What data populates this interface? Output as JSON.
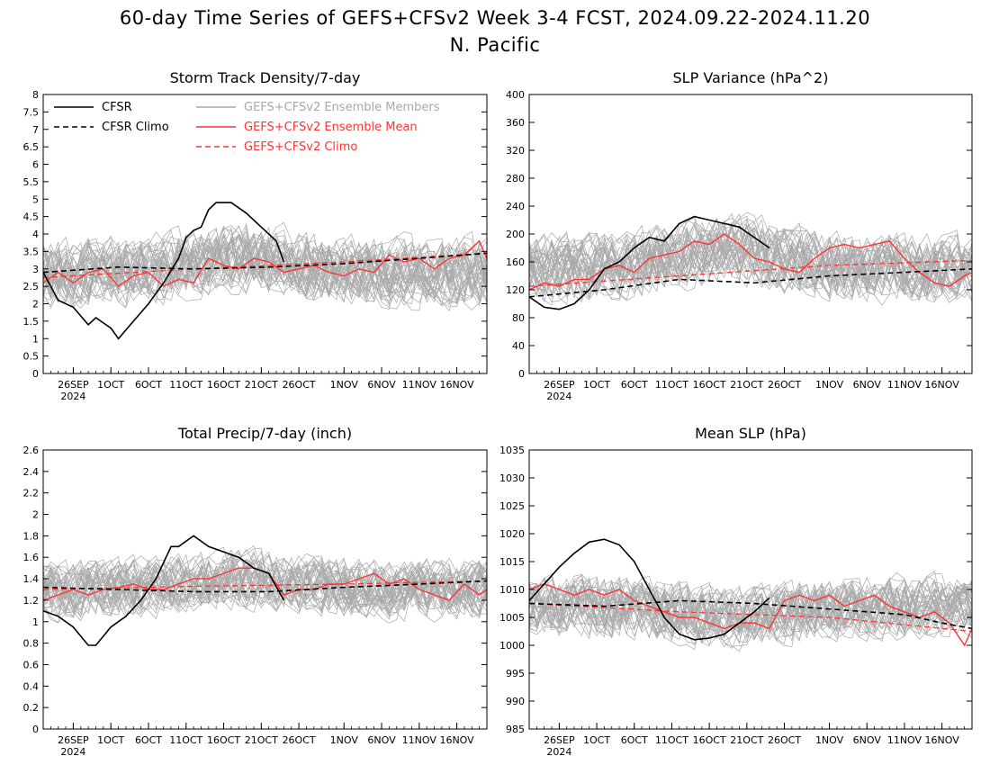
{
  "figure": {
    "title_line1": "60-day Time Series of GEFS+CFSv2 Week 3-4 FCST, 2024.09.22-2024.11.20",
    "title_line2": "N. Pacific"
  },
  "legend": [
    {
      "label": "CFSR",
      "color": "#000000",
      "dashed": false
    },
    {
      "label": "CFSR Climo",
      "color": "#000000",
      "dashed": true
    },
    {
      "label": "GEFS+CFSv2 Ensemble Members",
      "color": "#a9a9a9",
      "dashed": false
    },
    {
      "label": "GEFS+CFSv2 Ensemble Mean",
      "color": "#ff3333",
      "dashed": false
    },
    {
      "label": "GEFS+CFSv2 Climo",
      "color": "#ff3333",
      "dashed": true
    }
  ],
  "colors": {
    "cfsr": "#000000",
    "members": "#a9a9a9",
    "mean": "#ff3333"
  },
  "x_ticks": [
    {
      "label": "26SEP",
      "day": 4
    },
    {
      "label": "1OCT",
      "day": 9
    },
    {
      "label": "6OCT",
      "day": 14
    },
    {
      "label": "11OCT",
      "day": 19
    },
    {
      "label": "16OCT",
      "day": 24
    },
    {
      "label": "21OCT",
      "day": 29
    },
    {
      "label": "26OCT",
      "day": 34
    },
    {
      "label": "1NOV",
      "day": 40
    },
    {
      "label": "6NOV",
      "day": 45
    },
    {
      "label": "11NOV",
      "day": 50
    },
    {
      "label": "16NOV",
      "day": 55
    }
  ],
  "x_year": {
    "label": "2024",
    "day": 4
  },
  "chart_data": [
    {
      "type": "line",
      "title": "Storm Track Density/7-day",
      "xlim": [
        0,
        59
      ],
      "ylim": [
        0,
        8
      ],
      "yticks": [
        "0",
        "0.5",
        "1",
        "1.5",
        "2",
        "2.5",
        "3",
        "3.5",
        "4",
        "4.5",
        "5",
        "5.5",
        "6",
        "6.5",
        "7",
        "7.5",
        "8"
      ],
      "ytick_values": [
        0,
        0.5,
        1,
        1.5,
        2,
        2.5,
        3,
        3.5,
        4,
        4.5,
        5,
        5.5,
        6,
        6.5,
        7,
        7.5,
        8
      ],
      "show_legend": true,
      "member_base": 2.9,
      "member_spread": 0.9,
      "member_bump": 0.4,
      "series": [
        {
          "role": "obs",
          "x": [
            0,
            2,
            4,
            6,
            7,
            9,
            10,
            12,
            14,
            16,
            18,
            19,
            20,
            21,
            22,
            23,
            25,
            27,
            29,
            31,
            32
          ],
          "y": [
            2.9,
            2.1,
            1.9,
            1.4,
            1.6,
            1.3,
            1.0,
            1.5,
            2.0,
            2.6,
            3.3,
            3.9,
            4.1,
            4.2,
            4.7,
            4.9,
            4.9,
            4.6,
            4.2,
            3.8,
            3.2
          ]
        },
        {
          "role": "obs_climo",
          "x": [
            0,
            10,
            20,
            30,
            40,
            50,
            59
          ],
          "y": [
            2.9,
            3.05,
            3.0,
            3.05,
            3.15,
            3.3,
            3.45
          ]
        },
        {
          "role": "mean",
          "x": [
            0,
            2,
            4,
            6,
            8,
            10,
            12,
            14,
            16,
            18,
            20,
            22,
            24,
            26,
            28,
            30,
            32,
            34,
            36,
            38,
            40,
            42,
            44,
            46,
            48,
            50,
            52,
            54,
            56,
            58,
            59
          ],
          "y": [
            2.6,
            2.9,
            2.6,
            2.9,
            3.0,
            2.5,
            2.8,
            2.9,
            2.5,
            2.7,
            2.6,
            3.3,
            3.1,
            3.0,
            3.3,
            3.2,
            2.9,
            3.0,
            3.1,
            2.9,
            2.8,
            3.0,
            2.9,
            3.4,
            3.2,
            3.3,
            3.0,
            3.3,
            3.4,
            3.8,
            3.3
          ]
        },
        {
          "role": "model_climo",
          "x": [
            0,
            20,
            40,
            59
          ],
          "y": [
            2.75,
            3.0,
            3.2,
            3.45
          ]
        }
      ]
    },
    {
      "type": "line",
      "title": "SLP Variance (hPa^2)",
      "xlim": [
        0,
        59
      ],
      "ylim": [
        0,
        400
      ],
      "yticks": [
        "0",
        "40",
        "80",
        "120",
        "160",
        "200",
        "240",
        "280",
        "320",
        "360",
        "400"
      ],
      "ytick_values": [
        0,
        40,
        80,
        120,
        160,
        200,
        240,
        280,
        320,
        360,
        400
      ],
      "show_legend": false,
      "member_base": 150,
      "member_spread": 45,
      "member_bump": 30,
      "series": [
        {
          "role": "obs",
          "x": [
            0,
            2,
            4,
            6,
            8,
            10,
            12,
            14,
            16,
            18,
            20,
            22,
            24,
            26,
            28,
            30,
            32
          ],
          "y": [
            110,
            95,
            92,
            100,
            120,
            150,
            160,
            180,
            195,
            190,
            215,
            225,
            220,
            215,
            210,
            195,
            180
          ]
        },
        {
          "role": "obs_climo",
          "x": [
            0,
            10,
            20,
            30,
            40,
            50,
            59
          ],
          "y": [
            110,
            120,
            135,
            130,
            140,
            145,
            150
          ]
        },
        {
          "role": "mean",
          "x": [
            0,
            2,
            4,
            6,
            8,
            10,
            12,
            14,
            16,
            18,
            20,
            22,
            24,
            26,
            28,
            30,
            32,
            34,
            36,
            38,
            40,
            42,
            44,
            46,
            48,
            50,
            52,
            54,
            56,
            58,
            59
          ],
          "y": [
            120,
            130,
            125,
            135,
            135,
            150,
            155,
            145,
            165,
            170,
            175,
            190,
            185,
            200,
            185,
            165,
            160,
            150,
            145,
            165,
            180,
            185,
            180,
            185,
            190,
            165,
            145,
            130,
            125,
            140,
            145
          ]
        },
        {
          "role": "model_climo",
          "x": [
            0,
            20,
            40,
            59
          ],
          "y": [
            125,
            140,
            155,
            162
          ]
        }
      ]
    },
    {
      "type": "line",
      "title": "Total Precip/7-day (inch)",
      "xlim": [
        0,
        59
      ],
      "ylim": [
        0,
        2.6
      ],
      "yticks": [
        "0",
        "0.2",
        "0.4",
        "0.6",
        "0.8",
        "1",
        "1.2",
        "1.4",
        "1.6",
        "1.8",
        "2",
        "2.2",
        "2.4",
        "2.6"
      ],
      "ytick_values": [
        0,
        0.2,
        0.4,
        0.6,
        0.8,
        1,
        1.2,
        1.4,
        1.6,
        1.8,
        2,
        2.2,
        2.4,
        2.6
      ],
      "show_legend": false,
      "member_base": 1.3,
      "member_spread": 0.25,
      "member_bump": 0.1,
      "series": [
        {
          "role": "obs",
          "x": [
            0,
            2,
            4,
            6,
            7,
            9,
            11,
            13,
            15,
            17,
            18,
            20,
            22,
            24,
            26,
            28,
            30,
            32
          ],
          "y": [
            1.1,
            1.05,
            0.95,
            0.78,
            0.78,
            0.95,
            1.05,
            1.2,
            1.4,
            1.7,
            1.7,
            1.8,
            1.7,
            1.65,
            1.6,
            1.5,
            1.45,
            1.2
          ]
        },
        {
          "role": "obs_climo",
          "x": [
            0,
            10,
            20,
            30,
            40,
            50,
            59
          ],
          "y": [
            1.32,
            1.3,
            1.28,
            1.28,
            1.32,
            1.35,
            1.38
          ]
        },
        {
          "role": "mean",
          "x": [
            0,
            2,
            4,
            6,
            8,
            10,
            12,
            14,
            16,
            18,
            20,
            22,
            24,
            26,
            28,
            30,
            32,
            34,
            36,
            38,
            40,
            42,
            44,
            46,
            48,
            50,
            52,
            54,
            56,
            58,
            59
          ],
          "y": [
            1.2,
            1.25,
            1.3,
            1.25,
            1.3,
            1.32,
            1.35,
            1.3,
            1.3,
            1.35,
            1.4,
            1.4,
            1.45,
            1.5,
            1.5,
            1.45,
            1.25,
            1.3,
            1.3,
            1.35,
            1.35,
            1.4,
            1.45,
            1.35,
            1.4,
            1.3,
            1.25,
            1.2,
            1.35,
            1.25,
            1.3
          ]
        },
        {
          "role": "model_climo",
          "x": [
            0,
            20,
            40,
            59
          ],
          "y": [
            1.3,
            1.33,
            1.35,
            1.38
          ]
        }
      ]
    },
    {
      "type": "line",
      "title": "Mean SLP (hPa)",
      "xlim": [
        0,
        59
      ],
      "ylim": [
        985,
        1035
      ],
      "yticks": [
        "985",
        "990",
        "995",
        "1000",
        "1005",
        "1010",
        "1015",
        "1020",
        "1025",
        "1030",
        "1035"
      ],
      "ytick_values": [
        985,
        990,
        995,
        1000,
        1005,
        1010,
        1015,
        1020,
        1025,
        1030,
        1035
      ],
      "show_legend": false,
      "member_base": 1007,
      "member_spread": 5,
      "member_bump": -2,
      "series": [
        {
          "role": "obs",
          "x": [
            0,
            2,
            4,
            6,
            8,
            10,
            12,
            14,
            16,
            18,
            20,
            22,
            24,
            26,
            28,
            30,
            32
          ],
          "y": [
            1008,
            1011,
            1014,
            1016.5,
            1018.5,
            1019,
            1018,
            1015,
            1010,
            1005,
            1002,
            1001,
            1001.3,
            1002,
            1004,
            1006,
            1008.5
          ]
        },
        {
          "role": "obs_climo",
          "x": [
            0,
            10,
            20,
            30,
            40,
            50,
            55,
            59
          ],
          "y": [
            1007.5,
            1007,
            1008,
            1007.5,
            1006.5,
            1005.5,
            1004,
            1003
          ]
        },
        {
          "role": "mean",
          "x": [
            0,
            2,
            4,
            6,
            8,
            10,
            12,
            14,
            16,
            18,
            20,
            22,
            24,
            26,
            28,
            30,
            32,
            34,
            36,
            38,
            40,
            42,
            44,
            46,
            48,
            50,
            52,
            54,
            56,
            58,
            59
          ],
          "y": [
            1010,
            1011,
            1010,
            1009,
            1010,
            1009,
            1010,
            1008,
            1007,
            1006,
            1005,
            1005,
            1004,
            1003,
            1004,
            1004,
            1003,
            1008,
            1009,
            1008,
            1009,
            1007,
            1008,
            1009,
            1007,
            1006,
            1005,
            1006,
            1004,
            1000,
            1003
          ]
        },
        {
          "role": "model_climo",
          "x": [
            0,
            20,
            40,
            59
          ],
          "y": [
            1007.5,
            1006,
            1005,
            1002.5
          ]
        }
      ]
    }
  ]
}
